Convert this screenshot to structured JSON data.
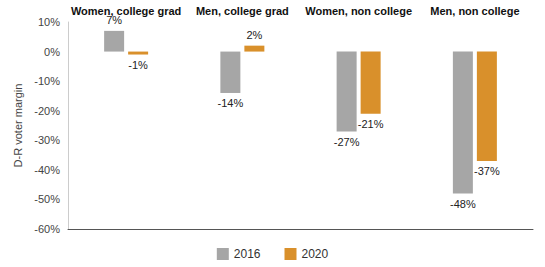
{
  "chart_data": {
    "type": "bar",
    "y_label": "D-R voter margin",
    "categories": [
      "Women, college grad",
      "Men, college grad",
      "Women, non college",
      "Men, non college"
    ],
    "series": [
      {
        "name": "2016",
        "color": "#a6a6a6",
        "values": [
          7,
          -14,
          -27,
          -48
        ],
        "value_labels": [
          "7%",
          "-14%",
          "-27%",
          "-48%"
        ]
      },
      {
        "name": "2020",
        "color": "#d9902b",
        "values": [
          -1,
          2,
          -21,
          -37
        ],
        "value_labels": [
          "-1%",
          "2%",
          "-21%",
          "-37%"
        ]
      }
    ],
    "ylim": [
      -60,
      10
    ],
    "yticks": [
      {
        "value": -60,
        "label": "-60%"
      },
      {
        "value": -50,
        "label": "-50%"
      },
      {
        "value": -40,
        "label": "-40%"
      },
      {
        "value": -30,
        "label": "-30%"
      },
      {
        "value": -20,
        "label": "-20%"
      },
      {
        "value": -10,
        "label": "-10%"
      },
      {
        "value": 0,
        "label": "0%"
      },
      {
        "value": 10,
        "label": "10%"
      }
    ],
    "grid": false,
    "legend": "bottom",
    "data_labels": true
  }
}
